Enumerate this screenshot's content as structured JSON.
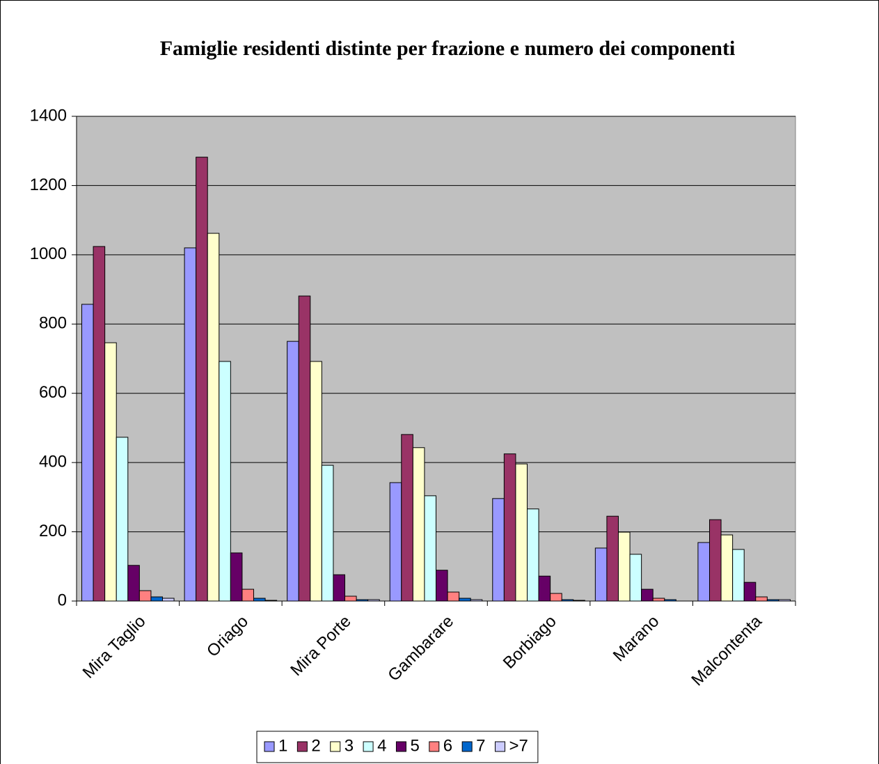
{
  "chart_data": {
    "type": "bar",
    "title": "Famiglie residenti distinte per frazione e numero dei componenti",
    "categories": [
      "Mira Taglio",
      "Oriago",
      "Mira Porte",
      "Gambarare",
      "Borbiago",
      "Marano",
      "Malcontenta"
    ],
    "series": [
      {
        "name": "1",
        "color": "#9999ff",
        "values": [
          857,
          1020,
          750,
          342,
          296,
          153,
          169
        ]
      },
      {
        "name": "2",
        "color": "#993366",
        "values": [
          1024,
          1282,
          881,
          481,
          425,
          245,
          235
        ]
      },
      {
        "name": "3",
        "color": "#ffffcc",
        "values": [
          746,
          1062,
          692,
          443,
          396,
          199,
          191
        ]
      },
      {
        "name": "4",
        "color": "#ccffff",
        "values": [
          473,
          692,
          392,
          304,
          266,
          135,
          149
        ]
      },
      {
        "name": "5",
        "color": "#660066",
        "values": [
          103,
          139,
          76,
          89,
          72,
          34,
          54
        ]
      },
      {
        "name": "6",
        "color": "#ff8080",
        "values": [
          30,
          34,
          14,
          26,
          22,
          8,
          12
        ]
      },
      {
        "name": "7",
        "color": "#0066cc",
        "values": [
          12,
          8,
          4,
          8,
          4,
          4,
          4
        ]
      },
      {
        "name": ">7",
        "color": "#ccccff",
        "values": [
          8,
          2,
          4,
          4,
          2,
          0,
          4
        ]
      }
    ],
    "ylim": [
      0,
      1400
    ],
    "yticks": [
      0,
      200,
      400,
      600,
      800,
      1000,
      1200,
      1400
    ],
    "grid": true,
    "plot_background": "#c0c0c0",
    "legend": "bottom"
  }
}
